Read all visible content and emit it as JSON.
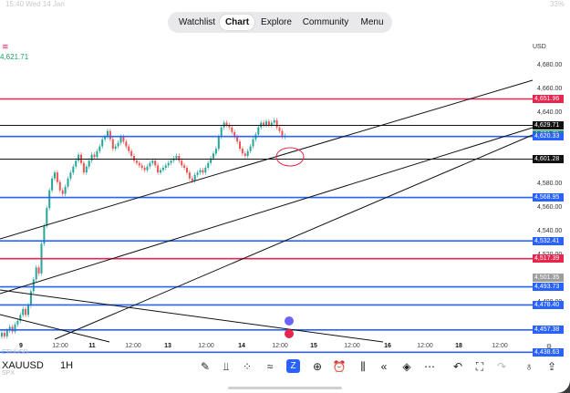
{
  "status_bar": {
    "time": "15:40  Wed 14 Jan",
    "right": "33%"
  },
  "tabs": [
    {
      "label": "Watchlist",
      "active": false
    },
    {
      "label": "Chart",
      "active": true
    },
    {
      "label": "Explore",
      "active": false
    },
    {
      "label": "Community",
      "active": false
    },
    {
      "label": "Menu",
      "active": false
    }
  ],
  "left_badge": "≋",
  "left_price": "4,621.71",
  "currency": "USD",
  "price_axis": [
    "4,680.00",
    "4,660.00",
    "4,640.00",
    "4,580.00",
    "4,560.00",
    "4,540.00",
    "4,520.00",
    "4,480.00"
  ],
  "levels": [
    {
      "label": "4,651.96",
      "color": "#e8254c"
    },
    {
      "label": "4,629.71",
      "color": "#111111"
    },
    {
      "label": "4,621.71",
      "color": "#1aa260"
    },
    {
      "label": "4,620.33",
      "color": "#2962ff"
    },
    {
      "label": "4,601.28",
      "color": "#111111"
    },
    {
      "label": "4,568.95",
      "color": "#2962ff"
    },
    {
      "label": "4,532.41",
      "color": "#2962ff"
    },
    {
      "label": "4,517.39",
      "color": "#e8254c"
    },
    {
      "label": "4,501.35",
      "color": "#9e9e9e"
    },
    {
      "label": "4,493.73",
      "color": "#2962ff"
    },
    {
      "label": "4,478.40",
      "color": "#2962ff"
    },
    {
      "label": "4,457.38",
      "color": "#2962ff"
    },
    {
      "label": "4,438.63",
      "color": "#2962ff"
    }
  ],
  "time_axis": [
    {
      "label": "9",
      "bold": true
    },
    {
      "label": "12:00",
      "bold": false
    },
    {
      "label": "11",
      "bold": true
    },
    {
      "label": "12:00",
      "bold": false
    },
    {
      "label": "13",
      "bold": true
    },
    {
      "label": "12:00",
      "bold": false
    },
    {
      "label": "14",
      "bold": true
    },
    {
      "label": "12:00",
      "bold": false
    },
    {
      "label": "15",
      "bold": true
    },
    {
      "label": "12:00",
      "bold": false
    },
    {
      "label": "16",
      "bold": true
    },
    {
      "label": "12:00",
      "bold": false
    },
    {
      "label": "18",
      "bold": true
    },
    {
      "label": "12:00",
      "bold": false
    }
  ],
  "symbol": "XAUUSD",
  "timeframe": "1H",
  "faded_labels": [
    "ETHUSD",
    "SPX"
  ],
  "colors": {
    "up": "#26a69a",
    "down": "#ef5350",
    "blue": "#2962ff",
    "red": "#e8254c"
  },
  "toolbar_icons": [
    "pen-icon",
    "indicators-icon",
    "grid-icon",
    "templates-icon",
    "replay-icon",
    "add-icon",
    "alarm-icon",
    "compare-icon",
    "rewind-icon",
    "layers-icon",
    "more-icon",
    "undo-icon",
    "fullscreen-icon",
    "redo-icon",
    "idea-icon",
    "share-icon"
  ]
}
